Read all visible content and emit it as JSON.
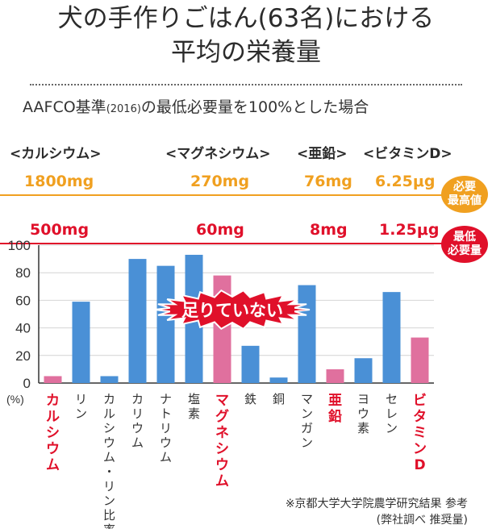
{
  "title_line1": "犬の手作りごはん(63名)における",
  "title_line2": "平均の栄養量",
  "subtitle_main": "AAFCO基準",
  "subtitle_year": "(2016)",
  "subtitle_rest": "の最低必要量を100%とした場合",
  "nutrients": [
    {
      "label": "<カルシウム>",
      "max": "1800mg",
      "min": "500mg"
    },
    {
      "label": "<マグネシウム>",
      "max": "270mg",
      "min": "60mg"
    },
    {
      "label": "<亜鉛>",
      "max": "76mg",
      "min": "8mg"
    },
    {
      "label": "<ビタミンD>",
      "max": "6.25μg",
      "min": "1.25μg"
    }
  ],
  "badge_max": "必要\n最高値",
  "badge_min": "最低\n必要量",
  "burst_label": "足りていない",
  "note_line1": "※京都大学大学院農学研究結果 参考",
  "note_line2": "(弊社調べ 推奨量)",
  "colors": {
    "blue": "#4a90d6",
    "pink": "#e0709e",
    "red": "#e0102a",
    "orange": "#f0a020"
  },
  "chart_data": {
    "type": "bar",
    "ylabel": "(%)",
    "ylim": [
      0,
      100
    ],
    "yticks": [
      0,
      20,
      40,
      60,
      80,
      100
    ],
    "grid": true,
    "categories": [
      "カルシウム",
      "リン",
      "カルシウム・リン比率",
      "カリウム",
      "ナトリウム",
      "塩素",
      "マグネシウム",
      "鉄",
      "銅",
      "マンガン",
      "亜鉛",
      "ヨウ素",
      "セレン",
      "ビタミンD"
    ],
    "values": [
      5,
      59,
      5,
      90,
      85,
      93,
      78,
      27,
      4,
      71,
      10,
      18,
      66,
      33
    ],
    "highlighted": [
      "カルシウム",
      "マグネシウム",
      "亜鉛",
      "ビタミンD"
    ]
  }
}
